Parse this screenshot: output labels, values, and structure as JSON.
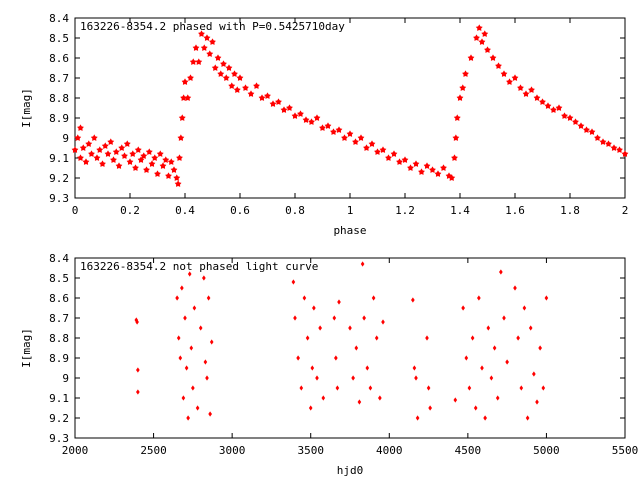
{
  "colors": {
    "points": "#ff0000",
    "axes": "#000000",
    "background": "#ffffff"
  },
  "chart_data": [
    {
      "type": "scatter",
      "title": "163226-8354.2 phased with P=0.5425710day",
      "xlabel": "phase",
      "ylabel": "I[mag]",
      "xlim": [
        0,
        2
      ],
      "ylim": [
        8.4,
        9.3
      ],
      "y_inverted": true,
      "grid": false,
      "marker": "star",
      "xticks": [
        "0",
        "0.2",
        "0.4",
        "0.6",
        "0.8",
        "1",
        "1.2",
        "1.4",
        "1.6",
        "1.8",
        "2"
      ],
      "yticks": [
        "8.4",
        "8.5",
        "8.6",
        "8.7",
        "8.8",
        "8.9",
        "9",
        "9.1",
        "9.2",
        "9.3"
      ],
      "series": [
        {
          "points": [
            [
              0.0,
              9.06
            ],
            [
              0.01,
              9.0
            ],
            [
              0.02,
              9.1
            ],
            [
              0.02,
              8.95
            ],
            [
              0.03,
              9.05
            ],
            [
              0.04,
              9.12
            ],
            [
              0.05,
              9.03
            ],
            [
              0.06,
              9.08
            ],
            [
              0.07,
              9.0
            ],
            [
              0.08,
              9.1
            ],
            [
              0.09,
              9.06
            ],
            [
              0.1,
              9.13
            ],
            [
              0.11,
              9.04
            ],
            [
              0.12,
              9.08
            ],
            [
              0.13,
              9.02
            ],
            [
              0.14,
              9.11
            ],
            [
              0.15,
              9.07
            ],
            [
              0.16,
              9.14
            ],
            [
              0.17,
              9.05
            ],
            [
              0.18,
              9.09
            ],
            [
              0.19,
              9.03
            ],
            [
              0.2,
              9.12
            ],
            [
              0.21,
              9.08
            ],
            [
              0.22,
              9.15
            ],
            [
              0.23,
              9.06
            ],
            [
              0.24,
              9.11
            ],
            [
              0.25,
              9.09
            ],
            [
              0.26,
              9.16
            ],
            [
              0.27,
              9.07
            ],
            [
              0.28,
              9.13
            ],
            [
              0.29,
              9.1
            ],
            [
              0.3,
              9.18
            ],
            [
              0.31,
              9.08
            ],
            [
              0.32,
              9.14
            ],
            [
              0.33,
              9.11
            ],
            [
              0.34,
              9.19
            ],
            [
              0.35,
              9.12
            ],
            [
              0.36,
              9.16
            ],
            [
              0.37,
              9.2
            ],
            [
              0.375,
              9.23
            ],
            [
              0.38,
              9.1
            ],
            [
              0.385,
              9.0
            ],
            [
              0.39,
              8.9
            ],
            [
              0.395,
              8.8
            ],
            [
              0.4,
              8.72
            ],
            [
              0.41,
              8.8
            ],
            [
              0.42,
              8.7
            ],
            [
              0.43,
              8.62
            ],
            [
              0.44,
              8.55
            ],
            [
              0.45,
              8.62
            ],
            [
              0.46,
              8.48
            ],
            [
              0.47,
              8.55
            ],
            [
              0.48,
              8.5
            ],
            [
              0.49,
              8.58
            ],
            [
              0.5,
              8.52
            ],
            [
              0.51,
              8.65
            ],
            [
              0.52,
              8.6
            ],
            [
              0.53,
              8.68
            ],
            [
              0.54,
              8.63
            ],
            [
              0.55,
              8.7
            ],
            [
              0.56,
              8.65
            ],
            [
              0.57,
              8.74
            ],
            [
              0.58,
              8.68
            ],
            [
              0.59,
              8.76
            ],
            [
              0.6,
              8.7
            ],
            [
              0.62,
              8.75
            ],
            [
              0.64,
              8.78
            ],
            [
              0.66,
              8.74
            ],
            [
              0.68,
              8.8
            ],
            [
              0.7,
              8.79
            ],
            [
              0.72,
              8.83
            ],
            [
              0.74,
              8.82
            ],
            [
              0.76,
              8.86
            ],
            [
              0.78,
              8.85
            ],
            [
              0.8,
              8.89
            ],
            [
              0.82,
              8.88
            ],
            [
              0.84,
              8.91
            ],
            [
              0.86,
              8.92
            ],
            [
              0.88,
              8.9
            ],
            [
              0.9,
              8.95
            ],
            [
              0.92,
              8.94
            ],
            [
              0.94,
              8.97
            ],
            [
              0.96,
              8.96
            ],
            [
              0.98,
              9.0
            ],
            [
              1.0,
              8.98
            ],
            [
              1.02,
              9.02
            ],
            [
              1.04,
              9.0
            ],
            [
              1.06,
              9.05
            ],
            [
              1.08,
              9.03
            ],
            [
              1.1,
              9.07
            ],
            [
              1.12,
              9.06
            ],
            [
              1.14,
              9.1
            ],
            [
              1.16,
              9.08
            ],
            [
              1.18,
              9.12
            ],
            [
              1.2,
              9.11
            ],
            [
              1.22,
              9.15
            ],
            [
              1.24,
              9.13
            ],
            [
              1.26,
              9.17
            ],
            [
              1.28,
              9.14
            ],
            [
              1.3,
              9.16
            ],
            [
              1.32,
              9.18
            ],
            [
              1.34,
              9.15
            ],
            [
              1.36,
              9.19
            ],
            [
              1.37,
              9.2
            ],
            [
              1.38,
              9.1
            ],
            [
              1.385,
              9.0
            ],
            [
              1.39,
              8.9
            ],
            [
              1.4,
              8.8
            ],
            [
              1.41,
              8.75
            ],
            [
              1.42,
              8.68
            ],
            [
              1.44,
              8.6
            ],
            [
              1.46,
              8.5
            ],
            [
              1.47,
              8.45
            ],
            [
              1.48,
              8.52
            ],
            [
              1.49,
              8.48
            ],
            [
              1.5,
              8.56
            ],
            [
              1.52,
              8.6
            ],
            [
              1.54,
              8.64
            ],
            [
              1.56,
              8.68
            ],
            [
              1.58,
              8.72
            ],
            [
              1.6,
              8.7
            ],
            [
              1.62,
              8.75
            ],
            [
              1.64,
              8.78
            ],
            [
              1.66,
              8.76
            ],
            [
              1.68,
              8.8
            ],
            [
              1.7,
              8.82
            ],
            [
              1.72,
              8.84
            ],
            [
              1.74,
              8.86
            ],
            [
              1.76,
              8.85
            ],
            [
              1.78,
              8.89
            ],
            [
              1.8,
              8.9
            ],
            [
              1.82,
              8.92
            ],
            [
              1.84,
              8.94
            ],
            [
              1.86,
              8.96
            ],
            [
              1.88,
              8.97
            ],
            [
              1.9,
              9.0
            ],
            [
              1.92,
              9.02
            ],
            [
              1.94,
              9.03
            ],
            [
              1.96,
              9.05
            ],
            [
              1.98,
              9.06
            ],
            [
              2.0,
              9.08
            ]
          ]
        }
      ]
    },
    {
      "type": "scatter",
      "title": "163226-8354.2 not phased light curve",
      "xlabel": "hjd0",
      "ylabel": "I[mag]",
      "xlim": [
        2000,
        5500
      ],
      "ylim": [
        8.4,
        9.3
      ],
      "y_inverted": true,
      "grid": false,
      "marker": "diamond",
      "xticks": [
        "2000",
        "2500",
        "3000",
        "3500",
        "4000",
        "4500",
        "5000",
        "5500"
      ],
      "yticks": [
        "8.4",
        "8.5",
        "8.6",
        "8.7",
        "8.8",
        "8.9",
        "9",
        "9.1",
        "9.2",
        "9.3"
      ],
      "series": [
        {
          "points": [
            [
              2390,
              8.71
            ],
            [
              2395,
              8.72
            ],
            [
              2400,
              8.96
            ],
            [
              2400,
              9.07
            ],
            [
              2650,
              8.6
            ],
            [
              2660,
              8.8
            ],
            [
              2670,
              8.9
            ],
            [
              2680,
              8.55
            ],
            [
              2690,
              9.1
            ],
            [
              2700,
              8.7
            ],
            [
              2710,
              8.95
            ],
            [
              2720,
              9.2
            ],
            [
              2730,
              8.48
            ],
            [
              2740,
              8.85
            ],
            [
              2750,
              9.05
            ],
            [
              2760,
              8.65
            ],
            [
              2780,
              9.15
            ],
            [
              2800,
              8.75
            ],
            [
              2820,
              8.5
            ],
            [
              2830,
              8.92
            ],
            [
              2840,
              9.0
            ],
            [
              2850,
              8.6
            ],
            [
              2860,
              9.18
            ],
            [
              2870,
              8.82
            ],
            [
              3390,
              8.52
            ],
            [
              3400,
              8.7
            ],
            [
              3420,
              8.9
            ],
            [
              3440,
              9.05
            ],
            [
              3460,
              8.6
            ],
            [
              3480,
              8.8
            ],
            [
              3500,
              9.15
            ],
            [
              3510,
              8.95
            ],
            [
              3520,
              8.65
            ],
            [
              3540,
              9.0
            ],
            [
              3560,
              8.75
            ],
            [
              3580,
              9.1
            ],
            [
              3650,
              8.7
            ],
            [
              3660,
              8.9
            ],
            [
              3670,
              9.05
            ],
            [
              3680,
              8.62
            ],
            [
              3750,
              8.75
            ],
            [
              3770,
              9.0
            ],
            [
              3790,
              8.85
            ],
            [
              3810,
              9.12
            ],
            [
              3830,
              8.43
            ],
            [
              3840,
              8.7
            ],
            [
              3860,
              8.95
            ],
            [
              3880,
              9.05
            ],
            [
              3900,
              8.6
            ],
            [
              3920,
              8.8
            ],
            [
              3940,
              9.1
            ],
            [
              3960,
              8.72
            ],
            [
              4150,
              8.61
            ],
            [
              4160,
              8.95
            ],
            [
              4170,
              9.0
            ],
            [
              4180,
              9.2
            ],
            [
              4240,
              8.8
            ],
            [
              4250,
              9.05
            ],
            [
              4260,
              9.15
            ],
            [
              4420,
              9.11
            ],
            [
              4470,
              8.65
            ],
            [
              4490,
              8.9
            ],
            [
              4510,
              9.05
            ],
            [
              4530,
              8.8
            ],
            [
              4550,
              9.15
            ],
            [
              4570,
              8.6
            ],
            [
              4590,
              8.95
            ],
            [
              4610,
              9.2
            ],
            [
              4630,
              8.75
            ],
            [
              4650,
              9.0
            ],
            [
              4670,
              8.85
            ],
            [
              4690,
              9.1
            ],
            [
              4710,
              8.47
            ],
            [
              4730,
              8.7
            ],
            [
              4750,
              8.92
            ],
            [
              4800,
              8.55
            ],
            [
              4820,
              8.8
            ],
            [
              4840,
              9.05
            ],
            [
              4860,
              8.65
            ],
            [
              4880,
              9.2
            ],
            [
              4900,
              8.75
            ],
            [
              4920,
              8.98
            ],
            [
              4940,
              9.12
            ],
            [
              4960,
              8.85
            ],
            [
              4980,
              9.05
            ],
            [
              5000,
              8.6
            ]
          ]
        }
      ]
    }
  ]
}
